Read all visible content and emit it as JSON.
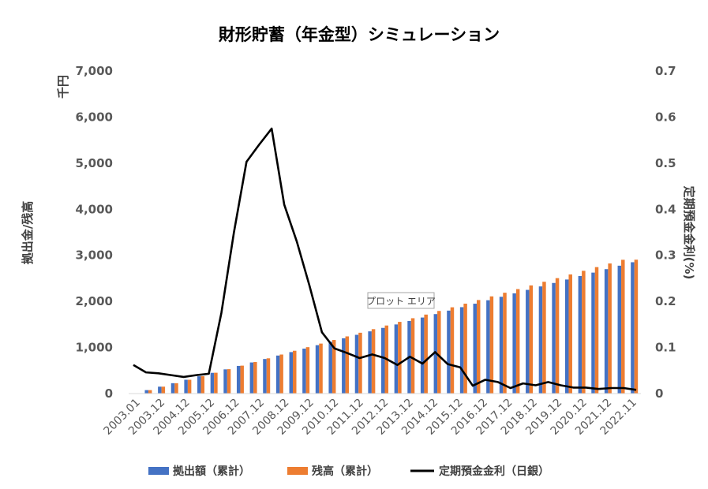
{
  "chart_data": {
    "type": "bar+line",
    "title": "財形貯蓄（年金型）シミュレーション",
    "y_unit_label": "千円",
    "ylabel_left": "拠出金/残高",
    "ylabel_right": "定期預金金利(%)",
    "ylim_left": [
      0,
      7000
    ],
    "ylim_right": [
      0,
      0.7
    ],
    "yticks_left": [
      "0",
      "1,000",
      "2,000",
      "3,000",
      "4,000",
      "5,000",
      "6,000",
      "7,000"
    ],
    "yticks_right": [
      "0",
      "0.1",
      "0.2",
      "0.3",
      "0.4",
      "0.5",
      "0.6",
      "0.7"
    ],
    "x_tick_labels": [
      "2003.01",
      "2003.12",
      "2004.12",
      "2005.12",
      "2006.12",
      "2007.12",
      "2008.12",
      "2009.12",
      "2010.12",
      "2011.12",
      "2012.12",
      "2013.12",
      "2014.12",
      "2015.12",
      "2016.12",
      "2017.12",
      "2018.12",
      "2019.12",
      "2020.12",
      "2021.12",
      "2022.11"
    ],
    "legend_position": "bottom",
    "grid": false,
    "series": [
      {
        "name": "拠出額（累計）",
        "kind": "bar",
        "color": "#4472c4",
        "values": [
          0,
          75,
          150,
          225,
          300,
          375,
          450,
          525,
          600,
          675,
          750,
          825,
          900,
          975,
          1050,
          1125,
          1200,
          1275,
          1350,
          1425,
          1500,
          1575,
          1650,
          1725,
          1800,
          1875,
          1950,
          2025,
          2100,
          2175,
          2250,
          2325,
          2400,
          2475,
          2550,
          2625,
          2700,
          2775,
          2850
        ]
      },
      {
        "name": "残高（累計）",
        "kind": "bar",
        "color": "#ed7d31",
        "values": [
          0,
          75,
          150,
          225,
          300,
          376,
          452,
          529,
          606,
          684,
          765,
          847,
          929,
          1007,
          1085,
          1163,
          1241,
          1320,
          1398,
          1477,
          1556,
          1635,
          1714,
          1793,
          1872,
          1951,
          2030,
          2109,
          2188,
          2267,
          2347,
          2426,
          2505,
          2585,
          2664,
          2744,
          2823,
          2903,
          2905
        ]
      },
      {
        "name": "定期預金金利（日銀）",
        "kind": "line",
        "color": "#000000",
        "values": [
          0.062,
          0.046,
          0.044,
          0.04,
          0.036,
          0.04,
          0.043,
          0.175,
          0.35,
          0.503,
          0.54,
          0.575,
          0.41,
          0.33,
          0.235,
          0.133,
          0.098,
          0.088,
          0.077,
          0.085,
          0.077,
          0.062,
          0.08,
          0.065,
          0.09,
          0.064,
          0.057,
          0.017,
          0.03,
          0.025,
          0.012,
          0.022,
          0.018,
          0.025,
          0.018,
          0.013,
          0.013,
          0.01,
          0.012,
          0.012,
          0.008
        ]
      }
    ]
  },
  "tooltip_text": "プロット エリア"
}
